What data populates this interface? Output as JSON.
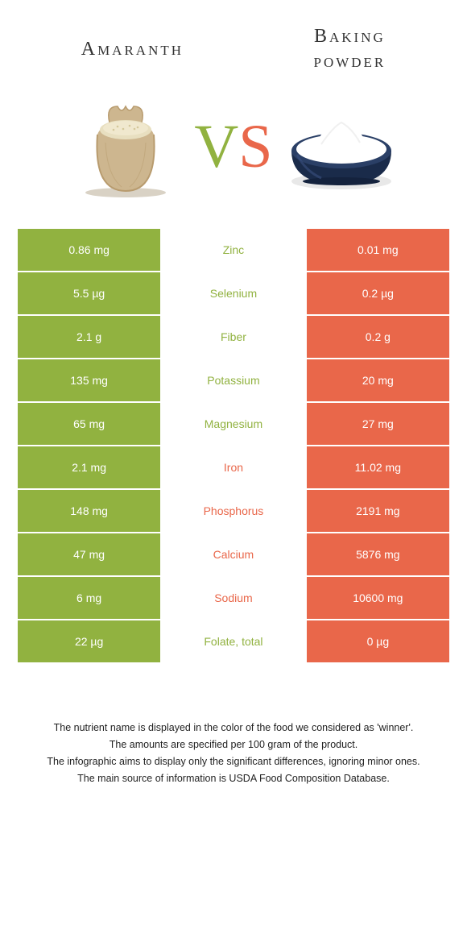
{
  "header": {
    "left_title": "Amaranth",
    "right_title": "Baking\npowder"
  },
  "vs": {
    "v": "V",
    "s": "S"
  },
  "colors": {
    "green": "#91b240",
    "orange": "#e9674a",
    "row_alt_bg": "#ffffff",
    "text_dark": "#333333"
  },
  "table": {
    "rows": [
      {
        "left": "0.86 mg",
        "name": "Zinc",
        "right": "0.01 mg",
        "winner": "left"
      },
      {
        "left": "5.5 µg",
        "name": "Selenium",
        "right": "0.2 µg",
        "winner": "left"
      },
      {
        "left": "2.1 g",
        "name": "Fiber",
        "right": "0.2 g",
        "winner": "left"
      },
      {
        "left": "135 mg",
        "name": "Potassium",
        "right": "20 mg",
        "winner": "left"
      },
      {
        "left": "65 mg",
        "name": "Magnesium",
        "right": "27 mg",
        "winner": "left"
      },
      {
        "left": "2.1 mg",
        "name": "Iron",
        "right": "11.02 mg",
        "winner": "right"
      },
      {
        "left": "148 mg",
        "name": "Phosphorus",
        "right": "2191 mg",
        "winner": "right"
      },
      {
        "left": "47 mg",
        "name": "Calcium",
        "right": "5876 mg",
        "winner": "right"
      },
      {
        "left": "6 mg",
        "name": "Sodium",
        "right": "10600 mg",
        "winner": "right"
      },
      {
        "left": "22 µg",
        "name": "Folate, total",
        "right": "0 µg",
        "winner": "left"
      }
    ]
  },
  "footer": {
    "lines": [
      "The nutrient name is displayed in the color of the food we considered as 'winner'.",
      "The amounts are specified per 100 gram of the product.",
      "The infographic aims to display only the significant differences, ignoring minor ones.",
      "The main source of information is USDA Food Composition Database."
    ]
  },
  "images": {
    "left_alt": "amaranth-grain-bag",
    "right_alt": "baking-powder-bowl"
  }
}
